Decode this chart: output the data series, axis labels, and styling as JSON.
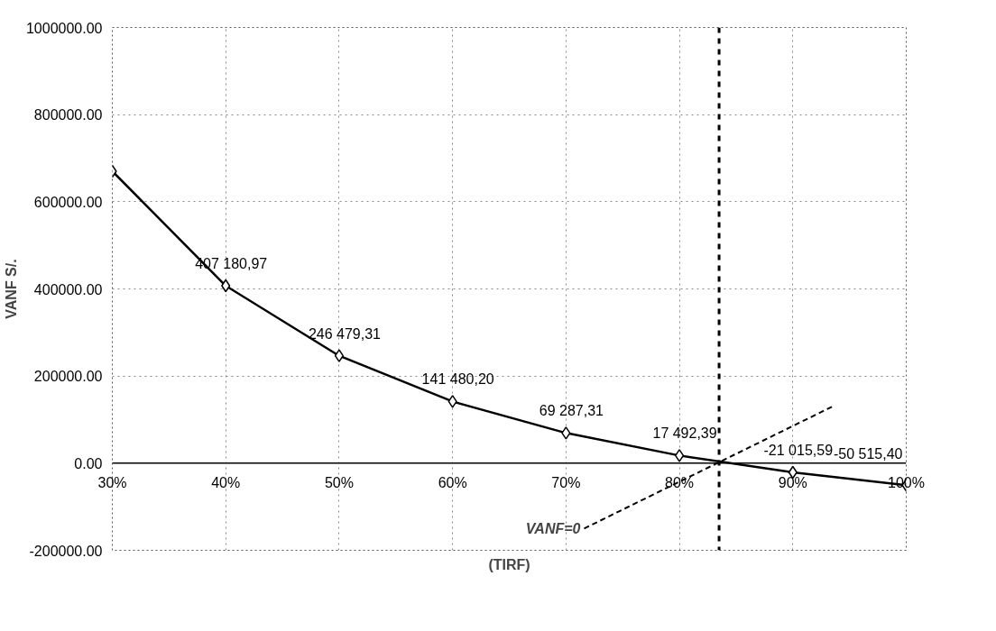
{
  "chart_data": {
    "type": "line",
    "xlabel": "(TIRF)",
    "ylabel": "VANF S/.",
    "x": [
      30,
      40,
      50,
      60,
      70,
      80,
      90,
      100
    ],
    "series": [
      {
        "color": "#000000",
        "values": [
          670000,
          407180.97,
          246479.31,
          141480.2,
          69287.31,
          17492.39,
          -21015.59,
          -50515.4
        ],
        "value_labels": [
          null,
          "407 180,97",
          "246 479,31",
          "141 480,20",
          "69 287,31",
          "17 492,39",
          "-21 015,59",
          "-50 515,40"
        ]
      }
    ],
    "marker": "diamond",
    "line_style": "solid",
    "grid": true,
    "xlim": [
      30,
      100
    ],
    "xticks": [
      {
        "value": 30,
        "label": "30%"
      },
      {
        "value": 40,
        "label": "40%"
      },
      {
        "value": 50,
        "label": "50%"
      },
      {
        "value": 60,
        "label": "60%"
      },
      {
        "value": 70,
        "label": "70%"
      },
      {
        "value": 80,
        "label": "80%"
      },
      {
        "value": 90,
        "label": "90%"
      },
      {
        "value": 100,
        "label": "100%"
      }
    ],
    "ylim": [
      -200000,
      1000000
    ],
    "yticks": [
      {
        "value": -200000,
        "label": "-200000.00"
      },
      {
        "value": 0,
        "label": "0.00"
      },
      {
        "value": 200000,
        "label": "200000.00"
      },
      {
        "value": 400000,
        "label": "400000.00"
      },
      {
        "value": 600000,
        "label": "600000.00"
      },
      {
        "value": 800000,
        "label": "800000.00"
      },
      {
        "value": 1000000,
        "label": "1000000.00"
      }
    ],
    "ref_lines": [
      {
        "axis": "x",
        "value": 83.5,
        "line_style": "dashed",
        "color": "#000000"
      }
    ],
    "annotations": [
      "VANF=0"
    ]
  }
}
